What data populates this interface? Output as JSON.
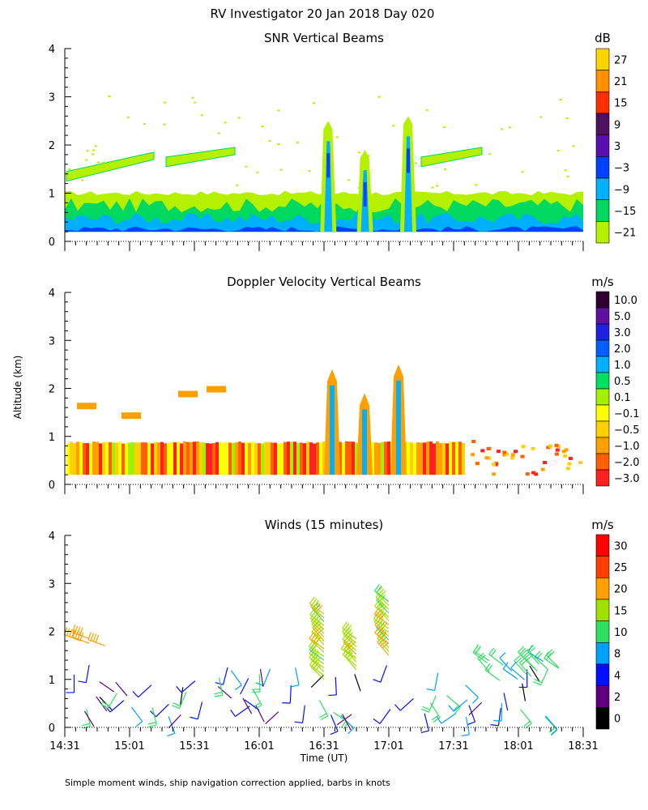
{
  "title": "RV Investigator  20 Jan 2018 Day 020",
  "ylabel": "Altitude (km)",
  "xlabel": "Time (UT)",
  "footnote": "Simple moment winds, ship navigation correction applied, barbs in knots",
  "chart_data": [
    {
      "type": "heatmap",
      "title": "SNR Vertical Beams",
      "ylabel": "Altitude (km)",
      "ylim": [
        0,
        4
      ],
      "yticks": [
        "0",
        "1",
        "2",
        "3",
        "4"
      ],
      "xlim": [
        "14:31",
        "18:31"
      ],
      "colorbar": {
        "unit": "dB",
        "labels": [
          "27",
          "21",
          "15",
          "9",
          "3",
          "−3",
          "−9",
          "−15",
          "−21"
        ],
        "colors": [
          "#ffd400",
          "#ff9000",
          "#ff3000",
          "#501060",
          "#5a10b0",
          "#0040ff",
          "#00b0ff",
          "#00d860",
          "#b4f000"
        ]
      },
      "features": [
        {
          "label": "boundary layer",
          "altitude_km": [
            0.2,
            1.0
          ],
          "time": [
            "14:31",
            "18:31"
          ]
        },
        {
          "label": "plume 1",
          "time": "16:33",
          "altitude_km": [
            0.2,
            2.5
          ]
        },
        {
          "label": "plume 2",
          "time": "16:50",
          "altitude_km": [
            0.2,
            1.9
          ]
        },
        {
          "label": "plume 3",
          "time": "17:10",
          "altitude_km": [
            0.2,
            2.6
          ]
        }
      ]
    },
    {
      "type": "heatmap",
      "title": "Doppler Velocity Vertical Beams",
      "ylabel": "Altitude (km)",
      "ylim": [
        0,
        4
      ],
      "yticks": [
        "0",
        "1",
        "2",
        "3",
        "4"
      ],
      "xlim": [
        "14:31",
        "18:31"
      ],
      "colorbar": {
        "unit": "m/s",
        "labels": [
          "10.0",
          "5.0",
          "3.0",
          "2.0",
          "1.0",
          "0.5",
          "0.1",
          "−0.1",
          "−0.5",
          "−1.0",
          "−2.0",
          "−3.0"
        ],
        "colors": [
          "#300030",
          "#6010a0",
          "#2020e0",
          "#0060ff",
          "#00b0ff",
          "#00e060",
          "#a0f000",
          "#ffff00",
          "#ffd000",
          "#ffa000",
          "#ff6000",
          "#ff2020"
        ]
      },
      "features": [
        {
          "label": "boundary layer",
          "altitude_km": [
            0.2,
            0.9
          ],
          "time": [
            "14:31",
            "17:31"
          ]
        },
        {
          "label": "sparse echoes",
          "altitude_km": [
            0.2,
            0.9
          ],
          "time": [
            "17:31",
            "18:31"
          ]
        }
      ]
    },
    {
      "type": "wind-barbs",
      "title": "Winds (15 minutes)",
      "ylabel": "Altitude (km)",
      "ylim": [
        0,
        4
      ],
      "yticks": [
        "0",
        "1",
        "2",
        "3",
        "4"
      ],
      "x": [
        "14:31",
        "15:01",
        "15:31",
        "16:01",
        "16:31",
        "17:01",
        "17:31",
        "18:01",
        "18:31"
      ],
      "colorbar": {
        "unit": "m/s",
        "labels": [
          "30",
          "25",
          "20",
          "15",
          "10",
          "8",
          "4",
          "2",
          "0"
        ],
        "colors": [
          "#ff0000",
          "#ff4000",
          "#ffa000",
          "#a0e000",
          "#30e060",
          "#00a0ff",
          "#0010ff",
          "#600080",
          "#000000"
        ]
      }
    }
  ]
}
